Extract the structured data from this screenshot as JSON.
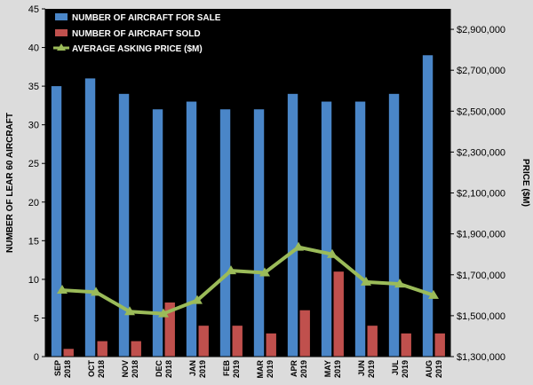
{
  "chart_data": {
    "type": "bar",
    "categories": [
      [
        "SEP",
        "2018"
      ],
      [
        "OCT",
        "2018"
      ],
      [
        "NOV",
        "2018"
      ],
      [
        "DEC",
        "2018"
      ],
      [
        "JAN",
        "2019"
      ],
      [
        "FEB",
        "2019"
      ],
      [
        "MAR",
        "2019"
      ],
      [
        "APR",
        "2019"
      ],
      [
        "MAY",
        "2019"
      ],
      [
        "JUN",
        "2019"
      ],
      [
        "JUL",
        "2019"
      ],
      [
        "AUG",
        "2019"
      ]
    ],
    "series": [
      {
        "name": "NUMBER OF AIRCRAFT FOR SALE",
        "type": "bar",
        "axis": "left",
        "color": "#4a86c8",
        "values": [
          35,
          36,
          34,
          32,
          33,
          32,
          32,
          34,
          33,
          33,
          34,
          39
        ]
      },
      {
        "name": "NUMBER OF AIRCRAFT SOLD",
        "type": "bar",
        "axis": "left",
        "color": "#c0504d",
        "values": [
          1,
          2,
          2,
          7,
          4,
          4,
          3,
          6,
          11,
          4,
          3,
          3
        ]
      },
      {
        "name": "AVERAGE ASKING PRICE ($M)",
        "type": "line",
        "axis": "right",
        "color": "#9bbb59",
        "marker": "triangle",
        "values": [
          1625000,
          1615000,
          1520000,
          1510000,
          1575000,
          1720000,
          1710000,
          1835000,
          1800000,
          1665000,
          1655000,
          1600000
        ]
      }
    ],
    "ylabel": "NUMBER OF LEAR 60 AIRCRAFT",
    "y2label": "PRICE ($M)",
    "ylim": [
      0,
      45
    ],
    "y2lim": [
      1300000,
      3000000
    ],
    "yticks": [
      "0",
      "5",
      "10",
      "15",
      "20",
      "25",
      "30",
      "35",
      "40",
      "45"
    ],
    "y2ticks": [
      "$1,300,000",
      "$1,500,000",
      "$1,700,000",
      "$1,900,000",
      "$2,100,000",
      "$2,300,000",
      "$2,500,000",
      "$2,700,000",
      "$2,900,000"
    ],
    "y2tick_values": [
      1300000,
      1500000,
      1700000,
      1900000,
      2100000,
      2300000,
      2500000,
      2700000,
      2900000
    ],
    "legend_position": "top-left",
    "plot_background": "#000000",
    "grid": false
  }
}
